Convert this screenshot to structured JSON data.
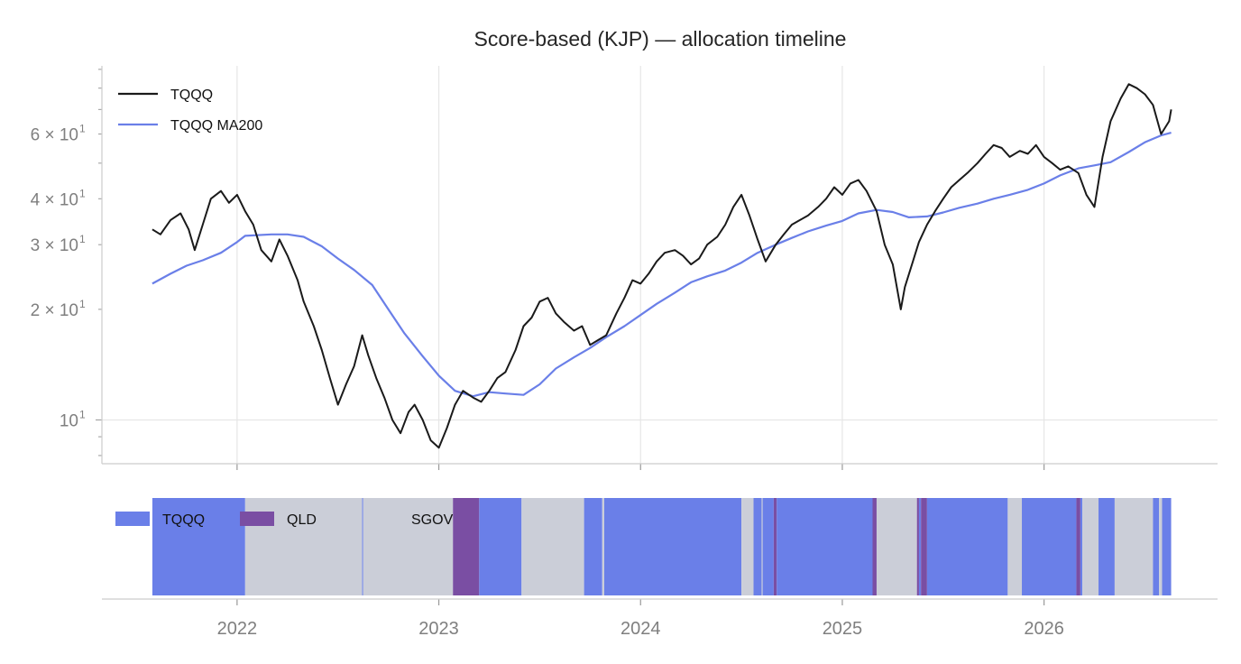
{
  "chart_data": [
    {
      "type": "line",
      "title": "Score-based (KJP) — allocation timeline",
      "yscale": "log",
      "ylim": [
        7.6,
        92
      ],
      "xlim": [
        2021.33,
        2026.86
      ],
      "grid": true,
      "legend": {
        "position": "top-left"
      },
      "y_ticks": [
        {
          "value": 10,
          "base": "10",
          "exp": "1"
        },
        {
          "value": 20,
          "base": "2 × 10",
          "exp": "1"
        },
        {
          "value": 30,
          "base": "3 × 10",
          "exp": "1"
        },
        {
          "value": 40,
          "base": "4 × 10",
          "exp": "1"
        },
        {
          "value": 60,
          "base": "6 × 10",
          "exp": "1"
        }
      ],
      "series": [
        {
          "name": "TQQQ",
          "color": "#1a1a1a",
          "points": [
            [
              2021.58,
              33
            ],
            [
              2021.62,
              32
            ],
            [
              2021.67,
              35
            ],
            [
              2021.72,
              36.5
            ],
            [
              2021.76,
              33
            ],
            [
              2021.79,
              29
            ],
            [
              2021.83,
              34
            ],
            [
              2021.87,
              40
            ],
            [
              2021.92,
              42
            ],
            [
              2021.96,
              39
            ],
            [
              2022.0,
              41
            ],
            [
              2022.04,
              37
            ],
            [
              2022.08,
              34
            ],
            [
              2022.12,
              29
            ],
            [
              2022.17,
              27
            ],
            [
              2022.21,
              31
            ],
            [
              2022.25,
              28
            ],
            [
              2022.3,
              24
            ],
            [
              2022.33,
              21
            ],
            [
              2022.38,
              18
            ],
            [
              2022.42,
              15.5
            ],
            [
              2022.46,
              13
            ],
            [
              2022.5,
              11
            ],
            [
              2022.54,
              12.5
            ],
            [
              2022.58,
              14
            ],
            [
              2022.62,
              17
            ],
            [
              2022.65,
              15
            ],
            [
              2022.69,
              13
            ],
            [
              2022.73,
              11.5
            ],
            [
              2022.77,
              10
            ],
            [
              2022.81,
              9.2
            ],
            [
              2022.85,
              10.5
            ],
            [
              2022.88,
              11
            ],
            [
              2022.92,
              10
            ],
            [
              2022.96,
              8.8
            ],
            [
              2023.0,
              8.4
            ],
            [
              2023.04,
              9.5
            ],
            [
              2023.08,
              11
            ],
            [
              2023.12,
              12
            ],
            [
              2023.17,
              11.5
            ],
            [
              2023.21,
              11.2
            ],
            [
              2023.25,
              12
            ],
            [
              2023.29,
              13
            ],
            [
              2023.33,
              13.5
            ],
            [
              2023.38,
              15.5
            ],
            [
              2023.42,
              18
            ],
            [
              2023.46,
              19
            ],
            [
              2023.5,
              21
            ],
            [
              2023.54,
              21.5
            ],
            [
              2023.58,
              19.5
            ],
            [
              2023.62,
              18.5
            ],
            [
              2023.67,
              17.5
            ],
            [
              2023.71,
              18
            ],
            [
              2023.75,
              16
            ],
            [
              2023.79,
              16.5
            ],
            [
              2023.83,
              17
            ],
            [
              2023.88,
              19.5
            ],
            [
              2023.92,
              21.5
            ],
            [
              2023.96,
              24
            ],
            [
              2024.0,
              23.5
            ],
            [
              2024.04,
              25
            ],
            [
              2024.08,
              27
            ],
            [
              2024.12,
              28.5
            ],
            [
              2024.17,
              29
            ],
            [
              2024.21,
              28
            ],
            [
              2024.25,
              26.5
            ],
            [
              2024.29,
              27.5
            ],
            [
              2024.33,
              30
            ],
            [
              2024.38,
              31.5
            ],
            [
              2024.42,
              34
            ],
            [
              2024.46,
              38
            ],
            [
              2024.5,
              41
            ],
            [
              2024.54,
              36
            ],
            [
              2024.58,
              31
            ],
            [
              2024.62,
              27
            ],
            [
              2024.67,
              30
            ],
            [
              2024.71,
              32
            ],
            [
              2024.75,
              34
            ],
            [
              2024.79,
              35
            ],
            [
              2024.83,
              36
            ],
            [
              2024.88,
              38
            ],
            [
              2024.92,
              40
            ],
            [
              2024.96,
              43
            ],
            [
              2025.0,
              41
            ],
            [
              2025.04,
              44
            ],
            [
              2025.08,
              45
            ],
            [
              2025.12,
              42
            ],
            [
              2025.17,
              37
            ],
            [
              2025.21,
              30
            ],
            [
              2025.25,
              26.5
            ],
            [
              2025.29,
              20
            ],
            [
              2025.31,
              23
            ],
            [
              2025.35,
              27
            ],
            [
              2025.38,
              30.5
            ],
            [
              2025.42,
              34
            ],
            [
              2025.46,
              37
            ],
            [
              2025.5,
              40
            ],
            [
              2025.54,
              43
            ],
            [
              2025.58,
              45
            ],
            [
              2025.62,
              47
            ],
            [
              2025.67,
              50
            ],
            [
              2025.71,
              53
            ],
            [
              2025.75,
              56
            ],
            [
              2025.79,
              55
            ],
            [
              2025.83,
              52
            ],
            [
              2025.88,
              54
            ],
            [
              2025.92,
              53
            ],
            [
              2025.96,
              56
            ],
            [
              2026.0,
              52
            ],
            [
              2026.04,
              50
            ],
            [
              2026.08,
              48
            ],
            [
              2026.12,
              49
            ],
            [
              2026.17,
              47
            ],
            [
              2026.21,
              41
            ],
            [
              2026.25,
              38
            ],
            [
              2026.29,
              52
            ],
            [
              2026.33,
              65
            ],
            [
              2026.38,
              75
            ],
            [
              2026.42,
              82
            ],
            [
              2026.46,
              80
            ],
            [
              2026.5,
              77
            ],
            [
              2026.54,
              72
            ],
            [
              2026.58,
              60
            ],
            [
              2026.62,
              65
            ],
            [
              2026.63,
              70
            ]
          ]
        },
        {
          "name": "TQQQ MA200",
          "color": "#6a7fe8",
          "points": [
            [
              2021.58,
              23.5
            ],
            [
              2021.67,
              25
            ],
            [
              2021.75,
              26.3
            ],
            [
              2021.83,
              27.2
            ],
            [
              2021.92,
              28.5
            ],
            [
              2022.0,
              30.5
            ],
            [
              2022.04,
              31.7
            ],
            [
              2022.17,
              32
            ],
            [
              2022.25,
              32
            ],
            [
              2022.33,
              31.5
            ],
            [
              2022.42,
              29.7
            ],
            [
              2022.5,
              27.5
            ],
            [
              2022.58,
              25.6
            ],
            [
              2022.67,
              23.3
            ],
            [
              2022.75,
              20
            ],
            [
              2022.83,
              17.2
            ],
            [
              2022.92,
              14.9
            ],
            [
              2023.0,
              13.2
            ],
            [
              2023.08,
              12
            ],
            [
              2023.17,
              11.6
            ],
            [
              2023.25,
              11.9
            ],
            [
              2023.33,
              11.8
            ],
            [
              2023.42,
              11.7
            ],
            [
              2023.5,
              12.5
            ],
            [
              2023.58,
              13.8
            ],
            [
              2023.67,
              14.8
            ],
            [
              2023.75,
              15.7
            ],
            [
              2023.83,
              16.8
            ],
            [
              2023.92,
              18
            ],
            [
              2024.0,
              19.3
            ],
            [
              2024.08,
              20.7
            ],
            [
              2024.17,
              22.2
            ],
            [
              2024.25,
              23.7
            ],
            [
              2024.33,
              24.6
            ],
            [
              2024.42,
              25.5
            ],
            [
              2024.5,
              26.8
            ],
            [
              2024.58,
              28.5
            ],
            [
              2024.67,
              30
            ],
            [
              2024.75,
              31.3
            ],
            [
              2024.83,
              32.6
            ],
            [
              2024.92,
              33.8
            ],
            [
              2025.0,
              34.8
            ],
            [
              2025.08,
              36.5
            ],
            [
              2025.17,
              37.3
            ],
            [
              2025.25,
              36.8
            ],
            [
              2025.33,
              35.6
            ],
            [
              2025.42,
              35.8
            ],
            [
              2025.5,
              36.7
            ],
            [
              2025.58,
              37.8
            ],
            [
              2025.67,
              38.8
            ],
            [
              2025.75,
              40
            ],
            [
              2025.83,
              41
            ],
            [
              2025.92,
              42.3
            ],
            [
              2026.0,
              44
            ],
            [
              2026.08,
              46.3
            ],
            [
              2026.17,
              48.4
            ],
            [
              2026.25,
              49.3
            ],
            [
              2026.33,
              50.3
            ],
            [
              2026.42,
              53.6
            ],
            [
              2026.5,
              57
            ],
            [
              2026.58,
              59.5
            ],
            [
              2026.63,
              60.5
            ]
          ]
        }
      ]
    },
    {
      "type": "timeline",
      "title": "",
      "xlim": [
        2021.33,
        2026.86
      ],
      "x_ticks": [
        "2022",
        "2023",
        "2024",
        "2025",
        "2026"
      ],
      "x_tick_values": [
        2022,
        2023,
        2024,
        2025,
        2026
      ],
      "legend": {
        "position": "top-left"
      },
      "categories": [
        {
          "name": "TQQQ",
          "color": "#6a7fe8"
        },
        {
          "name": "QLD",
          "color": "#7a4ea3"
        },
        {
          "name": "SGOV",
          "color": "#cbced8"
        }
      ],
      "segments": [
        {
          "start": 2021.58,
          "end": 2022.04,
          "alloc": "TQQQ"
        },
        {
          "start": 2022.04,
          "end": 2022.62,
          "alloc": "SGOV"
        },
        {
          "start": 2022.62,
          "end": 2022.625,
          "alloc": "TQQQ"
        },
        {
          "start": 2022.625,
          "end": 2023.07,
          "alloc": "SGOV"
        },
        {
          "start": 2023.07,
          "end": 2023.2,
          "alloc": "QLD"
        },
        {
          "start": 2023.2,
          "end": 2023.41,
          "alloc": "TQQQ"
        },
        {
          "start": 2023.41,
          "end": 2023.72,
          "alloc": "SGOV"
        },
        {
          "start": 2023.72,
          "end": 2023.81,
          "alloc": "TQQQ"
        },
        {
          "start": 2023.81,
          "end": 2023.82,
          "alloc": "SGOV"
        },
        {
          "start": 2023.82,
          "end": 2024.5,
          "alloc": "TQQQ"
        },
        {
          "start": 2024.5,
          "end": 2024.56,
          "alloc": "SGOV"
        },
        {
          "start": 2024.56,
          "end": 2024.6,
          "alloc": "TQQQ"
        },
        {
          "start": 2024.6,
          "end": 2024.605,
          "alloc": "SGOV"
        },
        {
          "start": 2024.605,
          "end": 2024.66,
          "alloc": "TQQQ"
        },
        {
          "start": 2024.66,
          "end": 2024.675,
          "alloc": "QLD"
        },
        {
          "start": 2024.675,
          "end": 2025.15,
          "alloc": "TQQQ"
        },
        {
          "start": 2025.15,
          "end": 2025.17,
          "alloc": "QLD"
        },
        {
          "start": 2025.17,
          "end": 2025.37,
          "alloc": "SGOV"
        },
        {
          "start": 2025.37,
          "end": 2025.38,
          "alloc": "QLD"
        },
        {
          "start": 2025.38,
          "end": 2025.39,
          "alloc": "TQQQ"
        },
        {
          "start": 2025.39,
          "end": 2025.42,
          "alloc": "QLD"
        },
        {
          "start": 2025.42,
          "end": 2025.82,
          "alloc": "TQQQ"
        },
        {
          "start": 2025.82,
          "end": 2025.89,
          "alloc": "SGOV"
        },
        {
          "start": 2025.89,
          "end": 2026.16,
          "alloc": "TQQQ"
        },
        {
          "start": 2026.16,
          "end": 2026.18,
          "alloc": "QLD"
        },
        {
          "start": 2026.18,
          "end": 2026.19,
          "alloc": "TQQQ"
        },
        {
          "start": 2026.19,
          "end": 2026.27,
          "alloc": "SGOV"
        },
        {
          "start": 2026.27,
          "end": 2026.35,
          "alloc": "TQQQ"
        },
        {
          "start": 2026.35,
          "end": 2026.54,
          "alloc": "SGOV"
        },
        {
          "start": 2026.54,
          "end": 2026.57,
          "alloc": "TQQQ"
        },
        {
          "start": 2026.57,
          "end": 2026.585,
          "alloc": "SGOV"
        },
        {
          "start": 2026.585,
          "end": 2026.63,
          "alloc": "TQQQ"
        }
      ]
    }
  ]
}
